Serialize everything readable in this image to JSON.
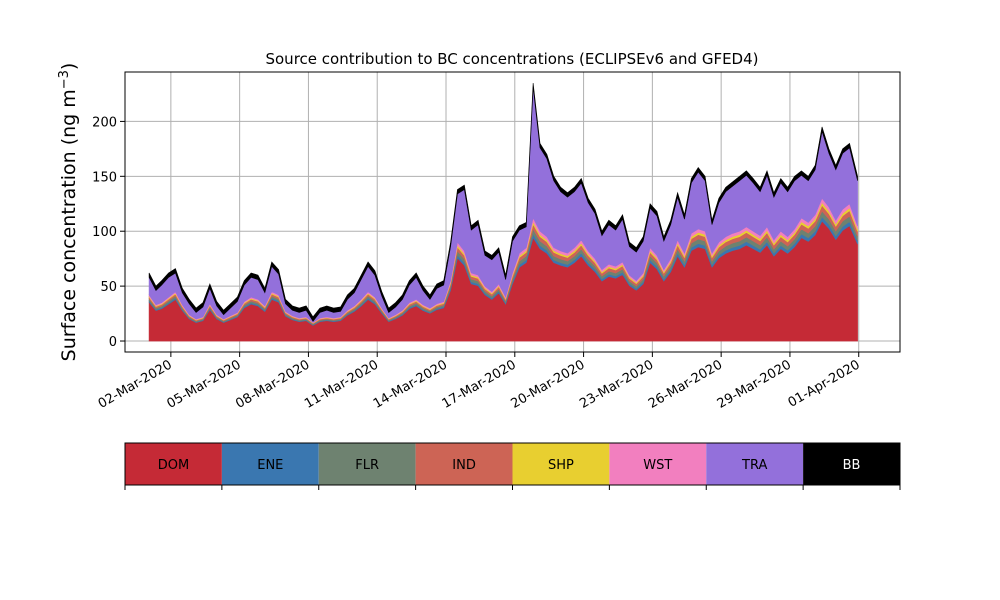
{
  "chart_data": {
    "type": "area",
    "title": "Source contribution to BC concentrations (ECLIPSEv6 and GFED4)",
    "ylabel": "Surface concentration (ng m",
    "ylabel_unit_exp": "−3",
    "ylabel_close": ")",
    "xlabel": "",
    "ylim": [
      -10,
      245
    ],
    "xlim": [
      -1.0,
      32.8
    ],
    "yticks": [
      0,
      50,
      100,
      150,
      200
    ],
    "xticks": [
      {
        "label": "02-Mar-2020",
        "day": 1
      },
      {
        "label": "05-Mar-2020",
        "day": 4
      },
      {
        "label": "08-Mar-2020",
        "day": 7
      },
      {
        "label": "11-Mar-2020",
        "day": 10
      },
      {
        "label": "14-Mar-2020",
        "day": 13
      },
      {
        "label": "17-Mar-2020",
        "day": 16
      },
      {
        "label": "20-Mar-2020",
        "day": 19
      },
      {
        "label": "23-Mar-2020",
        "day": 22
      },
      {
        "label": "26-Mar-2020",
        "day": 25
      },
      {
        "label": "29-Mar-2020",
        "day": 28
      },
      {
        "label": "01-Apr-2020",
        "day": 31
      }
    ],
    "grid": true,
    "stacked": true,
    "x": [
      0.05,
      0.35,
      0.6,
      0.9,
      1.2,
      1.5,
      1.8,
      2.1,
      2.4,
      2.7,
      3.0,
      3.3,
      3.6,
      3.9,
      4.2,
      4.5,
      4.8,
      5.1,
      5.4,
      5.7,
      6.0,
      6.3,
      6.6,
      6.9,
      7.2,
      7.5,
      7.8,
      8.1,
      8.4,
      8.7,
      9.0,
      9.3,
      9.6,
      9.9,
      10.2,
      10.5,
      10.8,
      11.1,
      11.4,
      11.7,
      12.0,
      12.3,
      12.6,
      12.9,
      13.2,
      13.5,
      13.8,
      14.1,
      14.4,
      14.7,
      15.0,
      15.3,
      15.6,
      15.9,
      16.2,
      16.5,
      16.8,
      17.1,
      17.4,
      17.7,
      18.0,
      18.3,
      18.6,
      18.9,
      19.2,
      19.5,
      19.8,
      20.1,
      20.4,
      20.7,
      21.0,
      21.3,
      21.6,
      21.9,
      22.2,
      22.5,
      22.8,
      23.1,
      23.4,
      23.7,
      24.0,
      24.3,
      24.6,
      24.9,
      25.2,
      25.5,
      25.8,
      26.1,
      26.4,
      26.7,
      27.0,
      27.3,
      27.6,
      27.9,
      28.2,
      28.5,
      28.8,
      29.1,
      29.4,
      29.7,
      30.0,
      30.3,
      30.6,
      30.95
    ],
    "total": [
      62,
      50,
      55,
      62,
      66,
      48,
      38,
      30,
      35,
      52,
      36,
      28,
      34,
      40,
      55,
      62,
      60,
      48,
      72,
      65,
      38,
      32,
      30,
      32,
      22,
      30,
      32,
      30,
      31,
      42,
      48,
      60,
      72,
      64,
      45,
      30,
      35,
      42,
      55,
      62,
      50,
      42,
      52,
      55,
      90,
      138,
      142,
      105,
      110,
      82,
      78,
      85,
      60,
      95,
      105,
      108,
      235,
      180,
      170,
      150,
      140,
      135,
      140,
      148,
      130,
      120,
      100,
      110,
      105,
      115,
      90,
      85,
      95,
      125,
      118,
      95,
      110,
      135,
      115,
      148,
      158,
      150,
      110,
      130,
      140,
      145,
      150,
      155,
      148,
      140,
      155,
      135,
      148,
      140,
      150,
      155,
      150,
      160,
      195,
      175,
      160,
      175,
      180,
      150
    ],
    "tra_base": [
      42,
      33,
      35,
      40,
      45,
      33,
      24,
      20,
      22,
      34,
      24,
      20,
      23,
      26,
      36,
      40,
      38,
      32,
      45,
      42,
      27,
      23,
      21,
      22,
      17,
      21,
      22,
      21,
      22,
      28,
      32,
      38,
      45,
      40,
      30,
      21,
      24,
      28,
      35,
      38,
      33,
      30,
      34,
      36,
      55,
      90,
      82,
      62,
      60,
      50,
      45,
      52,
      40,
      62,
      80,
      85,
      112,
      100,
      95,
      85,
      82,
      80,
      85,
      92,
      82,
      75,
      65,
      70,
      68,
      72,
      60,
      55,
      62,
      85,
      78,
      65,
      75,
      92,
      80,
      98,
      102,
      100,
      80,
      90,
      95,
      98,
      100,
      104,
      100,
      96,
      104,
      92,
      100,
      95,
      102,
      112,
      108,
      115,
      130,
      122,
      110,
      120,
      125,
      105
    ],
    "series": [
      {
        "name": "DOM",
        "color": "#c52a36",
        "frac": 0.84
      },
      {
        "name": "ENE",
        "color": "#3a77b0",
        "frac": 0.03
      },
      {
        "name": "FLR",
        "color": "#6e8270",
        "frac": 0.04
      },
      {
        "name": "IND",
        "color": "#cd6455",
        "frac": 0.04
      },
      {
        "name": "SHP",
        "color": "#e8cf30",
        "frac": 0.02
      },
      {
        "name": "WST",
        "color": "#f27fbf",
        "frac": 0.03
      },
      {
        "name": "TRA",
        "color": "#9370db"
      },
      {
        "name": "BB",
        "color": "#000000"
      }
    ]
  }
}
